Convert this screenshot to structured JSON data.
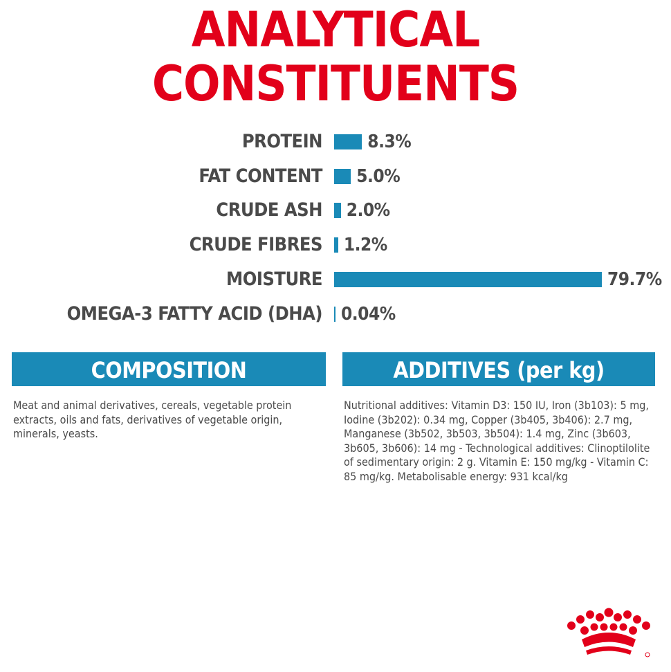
{
  "title": {
    "line1": "ANALYTICAL",
    "line2": "CONSTITUENTS"
  },
  "chart_data": {
    "type": "bar",
    "orientation": "horizontal",
    "categories": [
      "PROTEIN",
      "FAT CONTENT",
      "CRUDE ASH",
      "CRUDE FIBRES",
      "MOISTURE",
      "OMEGA-3 FATTY ACID (DHA)"
    ],
    "values": [
      8.3,
      5.0,
      2.0,
      1.2,
      79.7,
      0.04
    ],
    "value_labels": [
      "8.3%",
      "5.0%",
      "2.0%",
      "1.2%",
      "79.7%",
      "0.04%"
    ],
    "unit": "%",
    "xlim": [
      0,
      79.7
    ],
    "bar_color": "#1a8ab7",
    "grid": false,
    "legend": "none"
  },
  "composition": {
    "header": "COMPOSITION",
    "text": "Meat and animal derivatives, cereals, vegetable protein extracts, oils and fats, derivatives of vegetable origin, minerals, yeasts."
  },
  "additives": {
    "header": "ADDITIVES (per kg)",
    "text": "Nutritional additives: Vitamin D3: 150 IU, Iron (3b103): 5 mg, Iodine (3b202): 0.34 mg, Copper (3b405, 3b406): 2.7 mg, Manganese (3b502, 3b503, 3b504): 1.4 mg, Zinc (3b603, 3b605, 3b606): 14 mg - Technological additives: Clinoptilolite of sedimentary origin: 2 g. Vitamin E: 150 mg/kg - Vitamin C: 85 mg/kg. Metabolisable energy: 931 kcal/kg"
  },
  "colors": {
    "title": "#e2001a",
    "accent": "#1a8ab7",
    "text": "#4a4a4a",
    "logo": "#e2001a"
  },
  "logo": {
    "icon": "crown-logo-icon"
  }
}
